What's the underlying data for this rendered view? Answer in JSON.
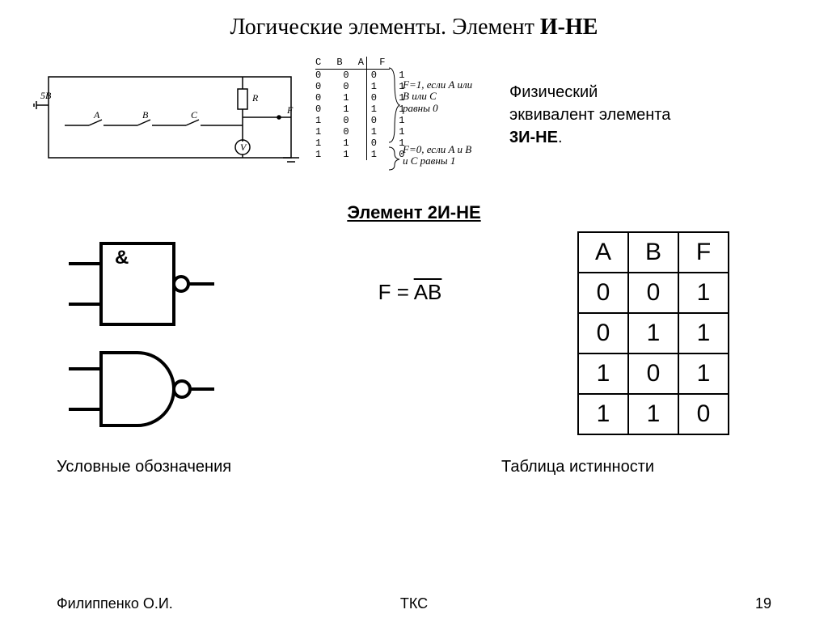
{
  "title_prefix": "Логические элементы. Элемент  ",
  "title_bold": "И-НЕ",
  "side_text_line1": "Физический",
  "side_text_line2": "эквивалент элемента",
  "side_text_bold": "3И-НЕ",
  "side_text_period": ".",
  "section_title": "Элемент 2И-НЕ",
  "gate_symbol": "&",
  "formula_lhs": "F = ",
  "formula_overlined": "AB",
  "truth_table": {
    "headers": [
      "A",
      "B",
      "F"
    ],
    "rows": [
      [
        "0",
        "0",
        "1"
      ],
      [
        "0",
        "1",
        "1"
      ],
      [
        "1",
        "0",
        "1"
      ],
      [
        "1",
        "1",
        "0"
      ]
    ]
  },
  "caption_symbols": "Условные обозначения",
  "caption_table": "Таблица истинности",
  "footer_author": "Филиппенко О.И.",
  "footer_course": "ТКС",
  "footer_page": "19",
  "small_truth": {
    "header": "C B A  F",
    "rows": [
      "0 0 0  1",
      "0 0 1  1",
      "0 1 0  1",
      "0 1 1  1",
      "1 0 0  1",
      "1 0 1  1",
      "1 1 0  1",
      "1 1 1  0"
    ],
    "brace_top_l1": "F=1, если A или",
    "brace_top_l2": "B или C",
    "brace_top_l3": "равны 0",
    "brace_bot_l1": "F=0, если A и B",
    "brace_bot_l2": "и C равны 1"
  },
  "circuit_labels": {
    "voltage": "5B",
    "R": "R",
    "F": "F",
    "A": "A",
    "B": "B",
    "C": "C",
    "V": "V"
  },
  "colors": {
    "text": "#000000",
    "bg": "#ffffff",
    "border": "#000000"
  }
}
